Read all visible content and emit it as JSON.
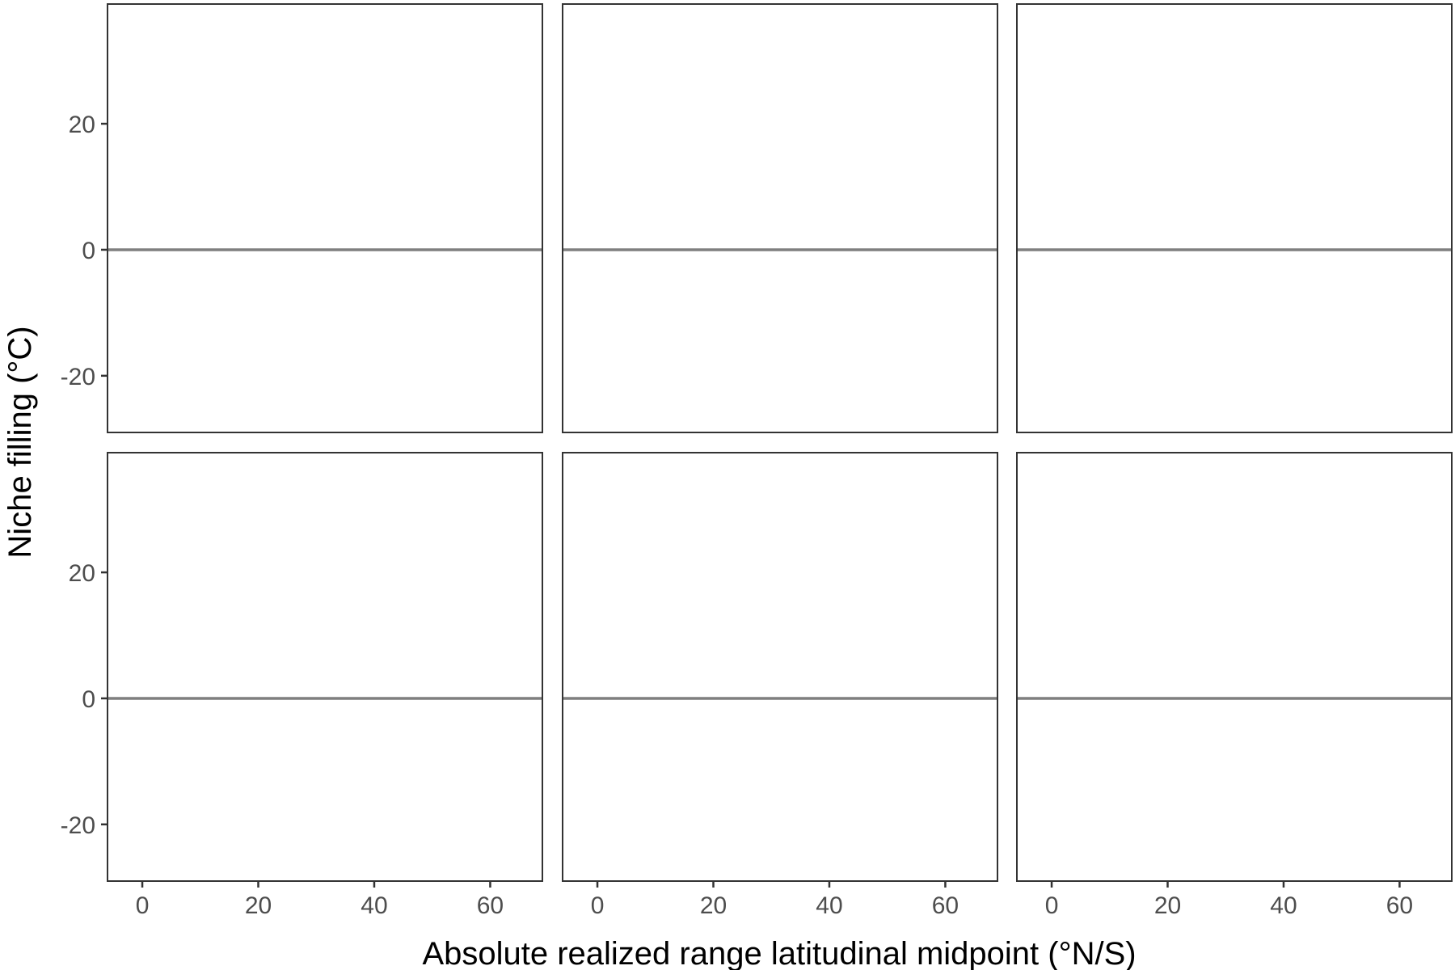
{
  "chart_data": {
    "type": "scatter",
    "layout": "facet grid, 2 rows by 3 columns, shared axes",
    "xlabel": "Absolute realized range latitudinal midpoint (°N/S)",
    "ylabel": "Niche filling (°C)",
    "xlim": [
      -6,
      69
    ],
    "ylim": [
      -29,
      39
    ],
    "x_ticks": [
      0,
      20,
      40,
      60
    ],
    "x_tick_labels": [
      "0",
      "20",
      "40",
      "60"
    ],
    "y_ticks": [
      -20,
      0,
      20
    ],
    "y_tick_labels": [
      "-20",
      "0",
      "20"
    ],
    "reference_line": {
      "orientation": "horizontal",
      "y": 0,
      "color": "#7f7f7f"
    },
    "grid": false,
    "legend": "none",
    "panels": [
      {
        "row": 1,
        "col": 1,
        "points": []
      },
      {
        "row": 1,
        "col": 2,
        "points": []
      },
      {
        "row": 1,
        "col": 3,
        "points": []
      },
      {
        "row": 2,
        "col": 1,
        "points": []
      },
      {
        "row": 2,
        "col": 2,
        "points": []
      },
      {
        "row": 2,
        "col": 3,
        "points": []
      }
    ]
  },
  "colors": {
    "panel_border": "#333333",
    "reference_line": "#7f7f7f",
    "tick_label": "#4d4d4d",
    "axis_title": "#000000",
    "background": "#ffffff"
  }
}
